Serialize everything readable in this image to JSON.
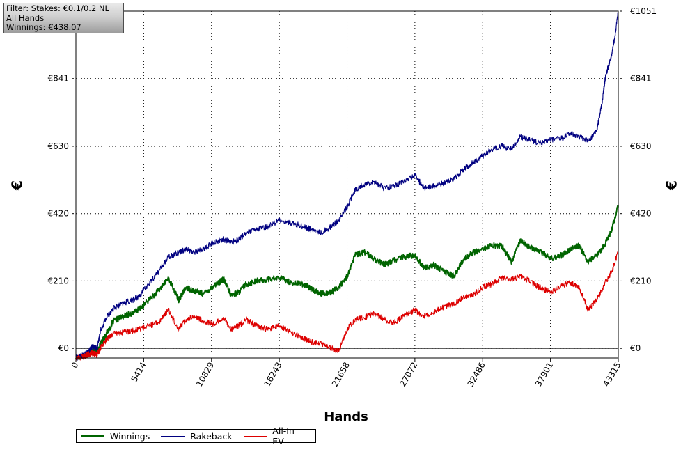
{
  "info_box": {
    "filter": "Filter: Stakes: €0.1/0.2 NL",
    "hands": "All Hands",
    "winnings": "Winnings: €438.07"
  },
  "chart_data": {
    "type": "line",
    "xlabel": "Hands",
    "ylabel_left": "€",
    "ylabel_right": "€",
    "xlim": [
      0,
      43315
    ],
    "ylim": [
      -30,
      1051
    ],
    "x_ticks": [
      "0",
      "5414",
      "10829",
      "16243",
      "21658",
      "27072",
      "32486",
      "37901",
      "43315"
    ],
    "y_ticks": [
      "€0",
      "€210",
      "€420",
      "€630",
      "€841",
      "€1051"
    ],
    "y_tick_values": [
      0,
      210,
      420,
      630,
      841,
      1051
    ],
    "grid": true,
    "legend_position": "bottom-left",
    "series": [
      {
        "name": "Winnings",
        "color": "#006400",
        "x": [
          0,
          700,
          1000,
          1300,
          1700,
          2000,
          2500,
          3000,
          3800,
          4500,
          5000,
          5800,
          6600,
          7400,
          8200,
          8800,
          9400,
          10200,
          11000,
          11800,
          12400,
          13000,
          13600,
          14400,
          15300,
          16300,
          17200,
          18200,
          18800,
          19600,
          20400,
          21000,
          21658,
          22300,
          23000,
          23800,
          24600,
          25400,
          26200,
          27072,
          27800,
          28600,
          29400,
          30200,
          31000,
          31800,
          32486,
          33200,
          34000,
          34800,
          35500,
          36200,
          37000,
          37901,
          38800,
          39500,
          40200,
          40900,
          41600,
          42200,
          42800,
          43315
        ],
        "values": [
          -30,
          -22,
          -15,
          -5,
          -10,
          15,
          50,
          85,
          100,
          110,
          120,
          150,
          180,
          220,
          150,
          190,
          180,
          170,
          195,
          215,
          165,
          175,
          200,
          210,
          215,
          220,
          205,
          200,
          185,
          170,
          175,
          190,
          225,
          290,
          300,
          280,
          260,
          275,
          285,
          290,
          250,
          260,
          240,
          225,
          280,
          300,
          310,
          320,
          320,
          270,
          340,
          315,
          305,
          280,
          290,
          310,
          320,
          270,
          290,
          320,
          370,
          445
        ]
      },
      {
        "name": "Rakeback",
        "color": "#000080",
        "x": [
          0,
          700,
          1000,
          1300,
          1700,
          2000,
          2500,
          3000,
          3800,
          4500,
          5000,
          5800,
          6600,
          7400,
          8200,
          8800,
          9400,
          10200,
          11000,
          11800,
          12400,
          13000,
          13600,
          14400,
          15300,
          16300,
          17200,
          18200,
          18800,
          19600,
          20400,
          21000,
          21658,
          22300,
          23000,
          23800,
          24600,
          25400,
          26200,
          27072,
          27800,
          28600,
          29400,
          30200,
          31000,
          31800,
          32486,
          33200,
          34000,
          34800,
          35500,
          36200,
          37000,
          37901,
          38800,
          39500,
          40200,
          40900,
          41600,
          42000,
          42300,
          42700,
          43000,
          43315
        ],
        "values": [
          -30,
          -20,
          -10,
          5,
          0,
          60,
          100,
          125,
          140,
          150,
          160,
          200,
          240,
          285,
          300,
          310,
          300,
          310,
          330,
          340,
          330,
          340,
          360,
          370,
          380,
          400,
          390,
          380,
          370,
          360,
          380,
          400,
          440,
          495,
          510,
          520,
          500,
          505,
          520,
          540,
          500,
          505,
          515,
          530,
          560,
          580,
          600,
          620,
          630,
          620,
          660,
          650,
          640,
          650,
          655,
          670,
          660,
          645,
          680,
          760,
          850,
          900,
          960,
          1051
        ]
      },
      {
        "name": "All-In EV",
        "color": "#dd0000",
        "x": [
          0,
          700,
          1000,
          1300,
          1700,
          2000,
          2500,
          3000,
          3800,
          4500,
          5000,
          5800,
          6600,
          7400,
          8200,
          8800,
          9400,
          10200,
          11000,
          11800,
          12400,
          13000,
          13600,
          14400,
          15300,
          16300,
          17200,
          18200,
          18800,
          19600,
          20400,
          21000,
          21658,
          22300,
          23000,
          23800,
          24600,
          25400,
          26200,
          27072,
          27800,
          28600,
          29400,
          30200,
          31000,
          31800,
          32486,
          33200,
          34000,
          34800,
          35500,
          36200,
          37000,
          37901,
          38800,
          39500,
          40200,
          40900,
          41600,
          42200,
          42800,
          43315
        ],
        "values": [
          -30,
          -25,
          -18,
          -15,
          -20,
          5,
          30,
          45,
          50,
          55,
          60,
          70,
          80,
          120,
          60,
          90,
          100,
          85,
          75,
          95,
          60,
          70,
          90,
          70,
          60,
          70,
          50,
          30,
          20,
          15,
          0,
          -10,
          60,
          90,
          95,
          110,
          90,
          80,
          100,
          120,
          100,
          115,
          130,
          140,
          160,
          170,
          190,
          200,
          220,
          215,
          225,
          210,
          190,
          175,
          195,
          205,
          190,
          120,
          150,
          200,
          240,
          300
        ]
      }
    ]
  }
}
